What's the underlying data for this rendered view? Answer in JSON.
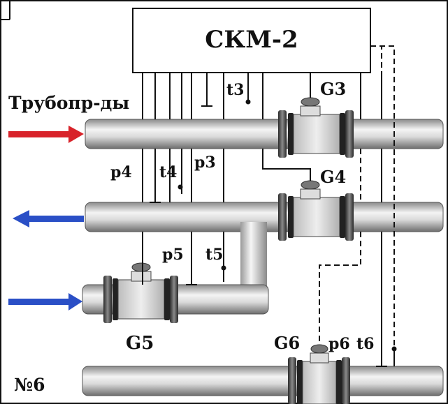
{
  "device": {
    "label": "СКМ-2"
  },
  "pipelines": {
    "label": "Трубопр-ды",
    "line6_label": "№6"
  },
  "flowmeters": {
    "g3": "G3",
    "g4": "G4",
    "g5": "G5",
    "g6": "G6"
  },
  "pressure_sensors": {
    "p3": "p3",
    "p4": "p4",
    "p5": "p5",
    "p6": "p6"
  },
  "temperature_sensors": {
    "t3": "t3",
    "t4": "t4",
    "t5": "t5",
    "t6": "t6"
  },
  "colors": {
    "supply_arrow": "#d8232a",
    "return_arrow": "#2a4fc6",
    "makeup_arrow": "#2a4fc6"
  }
}
